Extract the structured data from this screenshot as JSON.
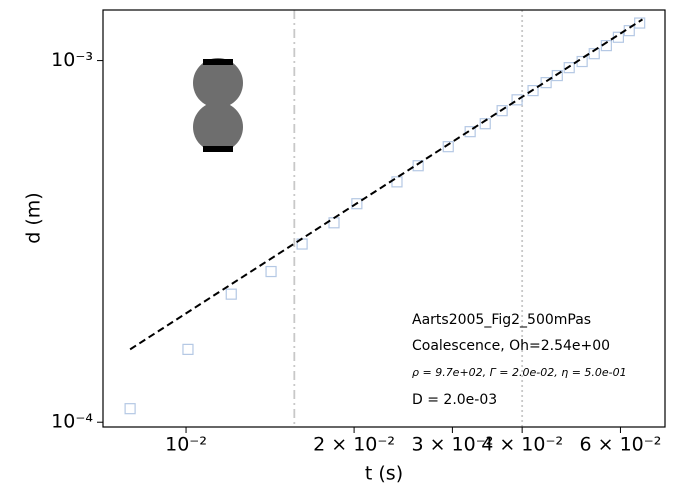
{
  "chart_data": {
    "type": "scatter",
    "xlabel": "t (s)",
    "ylabel": "d (m)",
    "xscale": "log",
    "yscale": "log",
    "xlim": [
      0.0071,
      0.0721
    ],
    "ylim": [
      9.7e-05,
      0.00138
    ],
    "xticks": [
      {
        "value": 0.01,
        "label": "10⁻²"
      },
      {
        "value": 0.02,
        "label": "2 × 10⁻²"
      },
      {
        "value": 0.03,
        "label": "3 × 10⁻²"
      },
      {
        "value": 0.04,
        "label": "4 × 10⁻²"
      },
      {
        "value": 0.06,
        "label": "6 × 10⁻²"
      }
    ],
    "yticks": [
      {
        "value": 0.0001,
        "label": "10⁻⁴"
      },
      {
        "value": 0.001,
        "label": "10⁻³"
      }
    ],
    "series": [
      {
        "color": "#b4c8e4",
        "x": [
          0.00794,
          0.01008,
          0.01205,
          0.0142,
          0.01614,
          0.01841,
          0.02023,
          0.02387,
          0.02605,
          0.02949,
          0.03228,
          0.03435,
          0.03683,
          0.03917,
          0.04184,
          0.04416,
          0.04624,
          0.04857,
          0.05123,
          0.05385,
          0.05661,
          0.05949,
          0.06222,
          0.06495
        ],
        "values": [
          0.000109,
          0.000159,
          0.000226,
          0.000261,
          0.000311,
          0.000356,
          0.000402,
          0.000462,
          0.000512,
          0.000578,
          0.000636,
          0.000669,
          0.000727,
          0.000779,
          0.000826,
          0.000869,
          0.000909,
          0.000956,
          0.000994,
          0.001045,
          0.0011,
          0.00116,
          0.00121,
          0.00127
        ]
      }
    ],
    "fit_line": {
      "color": "#000000",
      "style": "dashed",
      "x": [
        0.00794,
        0.0657
      ],
      "values": [
        0.000159,
        0.0013
      ]
    },
    "vlines": [
      {
        "x": 0.01563,
        "style": "dashdot",
        "color": "#c8c8c8"
      },
      {
        "x": 0.04,
        "style": "dotted",
        "color": "#c8c8c8"
      }
    ],
    "annotations": [
      "Aarts2005_Fig2_500mPas",
      "Coalescence, Oh=2.54e+00",
      "ρ = 9.7e+02, Γ = 2.0e-02, η = 5.0e-01",
      "D = 2.0e-03"
    ]
  }
}
